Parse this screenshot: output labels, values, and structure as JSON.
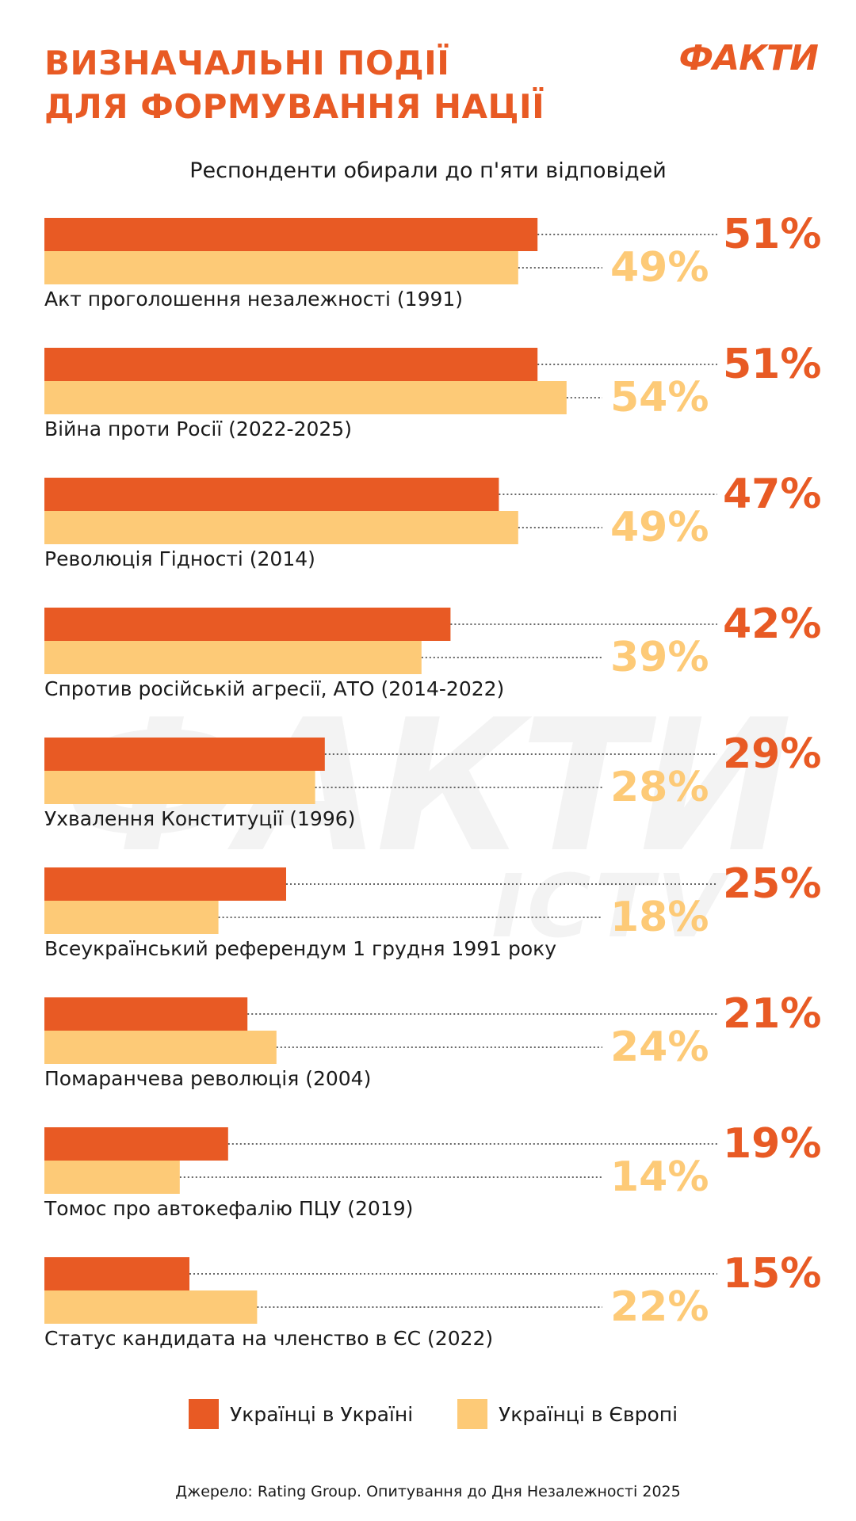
{
  "header": {
    "title_line1": "ВИЗНАЧАЛЬНІ ПОДІЇ",
    "title_line2": "ДЛЯ ФОРМУВАННЯ НАЦІЇ",
    "brand": "ФАКТИ",
    "subtitle": "Респонденти обирали до п'яти відповідей"
  },
  "watermark": {
    "text": "ФАКТИ",
    "subtext": "ICTV"
  },
  "colors": {
    "ukraine": "#E85A24",
    "europe": "#FDCA77",
    "text": "#1a1a1a",
    "dots": "#333333"
  },
  "chart_data": {
    "type": "bar",
    "orientation": "horizontal",
    "categories": [
      "Акт проголошення незалежності (1991)",
      "Війна проти Росії (2022-2025)",
      "Революція Гідності (2014)",
      "Спротив російській агресії, АТО (2014-2022)",
      "Ухвалення Конституції (1996)",
      "Всеукраїнський референдум 1 грудня 1991 року",
      "Помаранчева революція (2004)",
      "Томос про автокефалію ПЦУ (2019)",
      "Статус кандидата на членство в ЄС (2022)"
    ],
    "series": [
      {
        "name": "Українці в Україні",
        "values": [
          51,
          51,
          47,
          42,
          29,
          25,
          21,
          19,
          15
        ],
        "labels": [
          "51%",
          "51%",
          "47%",
          "42%",
          "29%",
          "25%",
          "21%",
          "19%",
          "15%"
        ]
      },
      {
        "name": "Українці в Європі",
        "values": [
          49,
          54,
          49,
          39,
          28,
          18,
          24,
          14,
          22
        ],
        "labels": [
          "49%",
          "54%",
          "49%",
          "39%",
          "28%",
          "18%",
          "24%",
          "14%",
          "22%"
        ]
      }
    ],
    "unit": "%",
    "legend_position": "bottom-center"
  },
  "legend": {
    "ukraine_label": "Українці в Україні",
    "europe_label": "Українці в Європі"
  },
  "source": "Джерело: Rating Group. Опитування до Дня Незалежності 2025"
}
